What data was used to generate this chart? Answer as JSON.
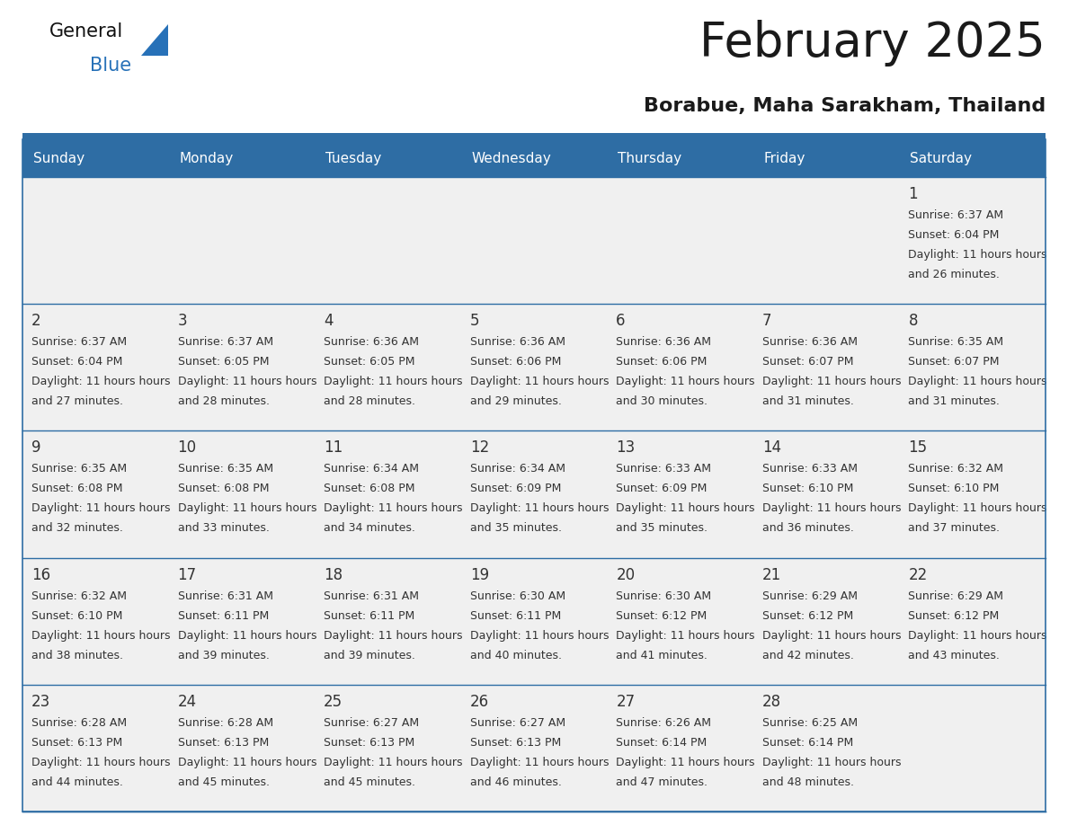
{
  "title": "February 2025",
  "subtitle": "Borabue, Maha Sarakham, Thailand",
  "days_of_week": [
    "Sunday",
    "Monday",
    "Tuesday",
    "Wednesday",
    "Thursday",
    "Friday",
    "Saturday"
  ],
  "header_bg_color": "#2E6DA4",
  "header_text_color": "#FFFFFF",
  "cell_bg_color": "#F0F0F0",
  "border_color": "#2E6DA4",
  "day_num_color": "#333333",
  "text_color": "#333333",
  "logo_blue_color": "#2771B8",
  "calendar_data": [
    [
      null,
      null,
      null,
      null,
      null,
      null,
      {
        "day": 1,
        "sunrise": "6:37 AM",
        "sunset": "6:04 PM",
        "daylight": "11 hours and 26 minutes"
      }
    ],
    [
      {
        "day": 2,
        "sunrise": "6:37 AM",
        "sunset": "6:04 PM",
        "daylight": "11 hours and 27 minutes"
      },
      {
        "day": 3,
        "sunrise": "6:37 AM",
        "sunset": "6:05 PM",
        "daylight": "11 hours and 28 minutes"
      },
      {
        "day": 4,
        "sunrise": "6:36 AM",
        "sunset": "6:05 PM",
        "daylight": "11 hours and 28 minutes"
      },
      {
        "day": 5,
        "sunrise": "6:36 AM",
        "sunset": "6:06 PM",
        "daylight": "11 hours and 29 minutes"
      },
      {
        "day": 6,
        "sunrise": "6:36 AM",
        "sunset": "6:06 PM",
        "daylight": "11 hours and 30 minutes"
      },
      {
        "day": 7,
        "sunrise": "6:36 AM",
        "sunset": "6:07 PM",
        "daylight": "11 hours and 31 minutes"
      },
      {
        "day": 8,
        "sunrise": "6:35 AM",
        "sunset": "6:07 PM",
        "daylight": "11 hours and 31 minutes"
      }
    ],
    [
      {
        "day": 9,
        "sunrise": "6:35 AM",
        "sunset": "6:08 PM",
        "daylight": "11 hours and 32 minutes"
      },
      {
        "day": 10,
        "sunrise": "6:35 AM",
        "sunset": "6:08 PM",
        "daylight": "11 hours and 33 minutes"
      },
      {
        "day": 11,
        "sunrise": "6:34 AM",
        "sunset": "6:08 PM",
        "daylight": "11 hours and 34 minutes"
      },
      {
        "day": 12,
        "sunrise": "6:34 AM",
        "sunset": "6:09 PM",
        "daylight": "11 hours and 35 minutes"
      },
      {
        "day": 13,
        "sunrise": "6:33 AM",
        "sunset": "6:09 PM",
        "daylight": "11 hours and 35 minutes"
      },
      {
        "day": 14,
        "sunrise": "6:33 AM",
        "sunset": "6:10 PM",
        "daylight": "11 hours and 36 minutes"
      },
      {
        "day": 15,
        "sunrise": "6:32 AM",
        "sunset": "6:10 PM",
        "daylight": "11 hours and 37 minutes"
      }
    ],
    [
      {
        "day": 16,
        "sunrise": "6:32 AM",
        "sunset": "6:10 PM",
        "daylight": "11 hours and 38 minutes"
      },
      {
        "day": 17,
        "sunrise": "6:31 AM",
        "sunset": "6:11 PM",
        "daylight": "11 hours and 39 minutes"
      },
      {
        "day": 18,
        "sunrise": "6:31 AM",
        "sunset": "6:11 PM",
        "daylight": "11 hours and 39 minutes"
      },
      {
        "day": 19,
        "sunrise": "6:30 AM",
        "sunset": "6:11 PM",
        "daylight": "11 hours and 40 minutes"
      },
      {
        "day": 20,
        "sunrise": "6:30 AM",
        "sunset": "6:12 PM",
        "daylight": "11 hours and 41 minutes"
      },
      {
        "day": 21,
        "sunrise": "6:29 AM",
        "sunset": "6:12 PM",
        "daylight": "11 hours and 42 minutes"
      },
      {
        "day": 22,
        "sunrise": "6:29 AM",
        "sunset": "6:12 PM",
        "daylight": "11 hours and 43 minutes"
      }
    ],
    [
      {
        "day": 23,
        "sunrise": "6:28 AM",
        "sunset": "6:13 PM",
        "daylight": "11 hours and 44 minutes"
      },
      {
        "day": 24,
        "sunrise": "6:28 AM",
        "sunset": "6:13 PM",
        "daylight": "11 hours and 45 minutes"
      },
      {
        "day": 25,
        "sunrise": "6:27 AM",
        "sunset": "6:13 PM",
        "daylight": "11 hours and 45 minutes"
      },
      {
        "day": 26,
        "sunrise": "6:27 AM",
        "sunset": "6:13 PM",
        "daylight": "11 hours and 46 minutes"
      },
      {
        "day": 27,
        "sunrise": "6:26 AM",
        "sunset": "6:14 PM",
        "daylight": "11 hours and 47 minutes"
      },
      {
        "day": 28,
        "sunrise": "6:25 AM",
        "sunset": "6:14 PM",
        "daylight": "11 hours and 48 minutes"
      },
      null
    ]
  ]
}
